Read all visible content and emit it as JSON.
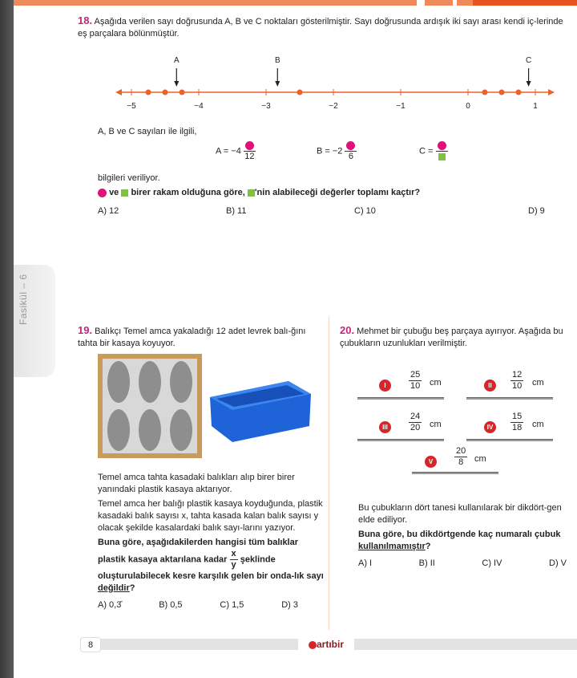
{
  "side_tab": "Fasikül – 6",
  "q18": {
    "number": "18.",
    "text": "Aşağıda verilen sayı doğrusunda A, B ve C noktaları gösterilmiştir. Sayı doğrusunda ardışık iki sayı arası kendi iç-lerinde eş parçalara bölünmüştür.",
    "number_line": {
      "tick_labels": [
        "−5",
        "−4",
        "−3",
        "−2",
        "−1",
        "0",
        "1"
      ],
      "tick_values": [
        -5,
        -4,
        -3,
        -2,
        -1,
        0,
        1
      ],
      "dot_values": [
        -4.75,
        -4.5,
        -4.25,
        -2.5,
        0.25,
        0.5,
        0.75
      ],
      "markers": [
        {
          "label": "A",
          "value": -4.33
        },
        {
          "label": "B",
          "value": -2.83
        },
        {
          "label": "C",
          "value": 0.9
        }
      ],
      "color": "#e8632f"
    },
    "intro": "A, B ve C sayıları ile ilgili,",
    "eq_a": {
      "left": "A = −4",
      "den": "12"
    },
    "eq_b": {
      "left": "B = −2",
      "den": "6"
    },
    "eq_c": {
      "left": "C ="
    },
    "given": "bilgileri veriliyor.",
    "question_ve": "ve",
    "question_mid": "birer rakam olduğuna göre,",
    "question_end": "'nin alabileceği değerler toplamı kaçtır?",
    "options": [
      "A) 12",
      "B) 11",
      "C) 10",
      "D) 9"
    ],
    "circle_color": "#e0127a",
    "square_color": "#7dc242"
  },
  "q19": {
    "number": "19.",
    "text": "Balıkçı Temel amca yakaladığı 12 adet levrek balı-ğını tahta bir kasaya koyuyor.",
    "p1": "Temel amca tahta kasadaki balıkları alıp birer birer yanındaki plastik kasaya aktarıyor.",
    "p2": "Temel amca her balığı plastik kasaya koyduğunda, plastik kasadaki balık sayısı x, tahta kasada kalan balık sayısı y olacak şekilde kasalardaki balık sayı-larını yazıyor.",
    "q_a": "Buna göre, aşağıdakilerden hangisi tüm balıklar plastik kasaya aktarılana kadar",
    "frac_num": "x",
    "frac_den": "y",
    "q_b": "şeklinde oluşturulabilecek kesre karşılık gelen bir onda-lık sayı",
    "q_neg": "değildir",
    "q_end": "?",
    "options": [
      "A) 0,3̄",
      "B) 0,5",
      "C) 1,5",
      "D) 3"
    ]
  },
  "q20": {
    "number": "20.",
    "text": "Mehmet bir çubuğu beş parçaya ayırıyor. Aşağıda bu çubukların uzunlukları verilmiştir.",
    "rods": [
      {
        "label": "I",
        "num": "25",
        "den": "10",
        "unit": "cm"
      },
      {
        "label": "II",
        "num": "12",
        "den": "10",
        "unit": "cm"
      },
      {
        "label": "III",
        "num": "24",
        "den": "20",
        "unit": "cm"
      },
      {
        "label": "IV",
        "num": "15",
        "den": "18",
        "unit": "cm"
      },
      {
        "label": "V",
        "num": "20",
        "den": "8",
        "unit": "cm"
      }
    ],
    "p1": "Bu çubukların dört tanesi kullanılarak bir dikdört-gen elde ediliyor.",
    "q_a": "Buna göre, bu dikdörtgende kaç numaralı çubuk",
    "q_neg": "kullanılmamıştır",
    "q_end": "?",
    "options": [
      "A) I",
      "B) II",
      "C) IV",
      "D) V"
    ]
  },
  "footer": {
    "page": "8",
    "logo": "artıbir"
  }
}
